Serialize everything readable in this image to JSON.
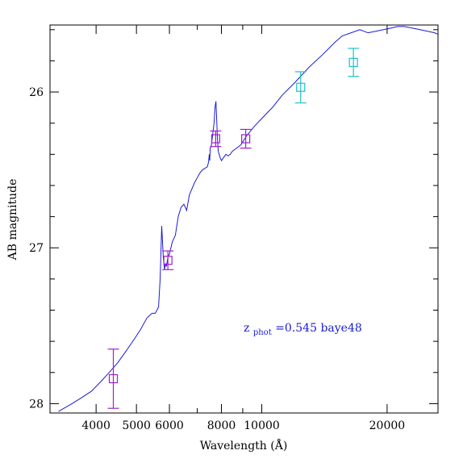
{
  "chart_data": {
    "type": "scatter",
    "title": "",
    "xlabel": "Wavelength (Å)",
    "ylabel": "AB magnitude",
    "xscale": "log",
    "xlim": [
      3100,
      26500
    ],
    "ylim": [
      28.06,
      25.57
    ],
    "y_inverted": true,
    "grid": false,
    "x_tick_labels": [
      {
        "value": 4000,
        "label": "4000"
      },
      {
        "value": 5000,
        "label": "5000"
      },
      {
        "value": 6000,
        "label": "6000"
      },
      {
        "value": 8000,
        "label": "8000"
      },
      {
        "value": 10000,
        "label": "10000"
      },
      {
        "value": 20000,
        "label": "20000"
      }
    ],
    "x_minor_ticks": [
      3000,
      7000,
      9000,
      30000
    ],
    "y_tick_labels": [
      {
        "value": 26,
        "label": "26"
      },
      {
        "value": 27,
        "label": "27"
      },
      {
        "value": 28,
        "label": "28"
      }
    ],
    "y_minor_ticks": [
      25.6,
      25.8,
      26.2,
      26.4,
      26.6,
      26.8,
      27.2,
      27.4,
      27.6,
      27.8
    ],
    "annotation": {
      "prefix": "z",
      "subscript": "phot",
      "text": "=0.545 baye48",
      "color": "#1a1ad8"
    },
    "series": [
      {
        "kind": "line",
        "color": "#1a1ad8",
        "x": [
          3250,
          3500,
          3700,
          3900,
          4100,
          4300,
          4500,
          4700,
          4900,
          5100,
          5300,
          5450,
          5550,
          5650,
          5700,
          5750,
          5800,
          5840,
          5870,
          5900,
          5950,
          6000,
          6050,
          6100,
          6200,
          6300,
          6400,
          6500,
          6600,
          6700,
          6800,
          6900,
          7000,
          7100,
          7200,
          7300,
          7400,
          7450,
          7480,
          7500,
          7520,
          7560,
          7600,
          7640,
          7680,
          7720,
          7760,
          7800,
          7820,
          7860,
          7900,
          7940,
          8000,
          8100,
          8200,
          8300,
          8400,
          8500,
          8700,
          8900,
          9200,
          9600,
          10000,
          10600,
          11200,
          12000,
          13000,
          14000,
          15000,
          15600,
          16400,
          17200,
          18000,
          18800,
          19600,
          20400,
          21200,
          22000,
          23000,
          24000,
          25000,
          26000,
          26500
        ],
        "y": [
          28.05,
          28.0,
          27.96,
          27.92,
          27.86,
          27.8,
          27.74,
          27.67,
          27.6,
          27.53,
          27.45,
          27.42,
          27.42,
          27.38,
          27.2,
          26.86,
          27.06,
          27.14,
          27.1,
          27.12,
          27.06,
          27.04,
          27.0,
          26.96,
          26.92,
          26.8,
          26.74,
          26.72,
          26.76,
          26.66,
          26.62,
          26.58,
          26.55,
          26.52,
          26.5,
          26.49,
          26.48,
          26.45,
          26.4,
          26.44,
          26.36,
          26.35,
          26.3,
          26.25,
          26.2,
          26.1,
          26.06,
          26.2,
          26.28,
          26.38,
          26.4,
          26.42,
          26.44,
          26.42,
          26.4,
          26.41,
          26.4,
          26.38,
          26.36,
          26.34,
          26.28,
          26.22,
          26.17,
          26.1,
          26.02,
          25.94,
          25.84,
          25.76,
          25.68,
          25.64,
          25.62,
          25.6,
          25.62,
          25.61,
          25.6,
          25.59,
          25.58,
          25.58,
          25.59,
          25.6,
          25.61,
          25.62,
          25.63
        ]
      },
      {
        "kind": "points_with_errorbars",
        "name": "",
        "color": "#a020c8",
        "x": [
          4400,
          5950,
          7750,
          9150
        ],
        "y": [
          27.84,
          27.08,
          26.3,
          26.3
        ],
        "yerr": [
          0.19,
          0.06,
          0.05,
          0.06
        ]
      },
      {
        "kind": "points_with_errorbars",
        "name": "",
        "color": "#1fc0c8",
        "x": [
          12400,
          16600
        ],
        "y": [
          25.97,
          25.81
        ],
        "yerr": [
          0.1,
          0.09
        ]
      }
    ]
  }
}
